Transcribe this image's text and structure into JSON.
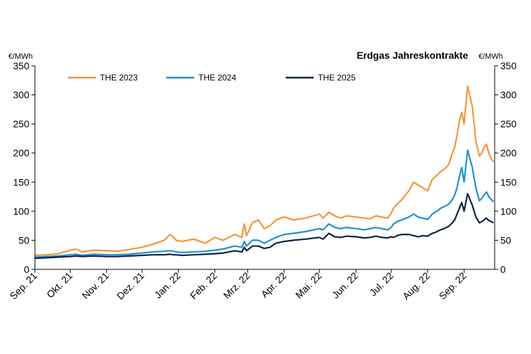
{
  "chart_data": {
    "type": "line",
    "title": "Erdgas Jahreskontrakte",
    "ylabel_left": "€/MWh",
    "ylabel_right": "€/MWh",
    "ylim": [
      0,
      350
    ],
    "yticks": [
      "0",
      "50",
      "100",
      "150",
      "200",
      "250",
      "300",
      "350"
    ],
    "xlim": [
      0,
      391
    ],
    "categories": [
      "Sep. 21",
      "Okt. 21",
      "Nov. 21",
      "Dez. 21",
      "Jan. 22",
      "Feb. 22",
      "Mrz. 22",
      "Apr. 22",
      "Mai. 22",
      "Jun. 22",
      "Jul. 22",
      "Aug. 22",
      "Sep. 22"
    ],
    "category_positions": [
      0,
      30,
      61,
      91,
      122,
      153,
      181,
      212,
      242,
      273,
      303,
      334,
      365
    ],
    "grid": false,
    "legend_position": "top-left",
    "series": [
      {
        "name": "THE 2023",
        "color": "#F39539",
        "x": [
          0,
          10,
          20,
          30,
          35,
          40,
          50,
          61,
          70,
          80,
          91,
          100,
          110,
          115,
          118,
          120,
          125,
          135,
          145,
          153,
          160,
          170,
          176,
          178,
          180,
          185,
          190,
          195,
          200,
          205,
          212,
          220,
          230,
          242,
          245,
          250,
          255,
          260,
          265,
          273,
          280,
          285,
          290,
          295,
          300,
          303,
          305,
          308,
          312,
          318,
          322,
          326,
          330,
          334,
          338,
          340,
          342,
          345,
          348,
          352,
          355,
          357,
          359,
          361,
          363,
          365,
          368,
          372,
          375,
          378,
          380,
          382,
          384,
          386,
          388,
          390
        ],
        "y": [
          24,
          25,
          27,
          33,
          35,
          30,
          33,
          32,
          31,
          34,
          38,
          43,
          50,
          60,
          55,
          50,
          48,
          52,
          45,
          55,
          50,
          60,
          55,
          78,
          58,
          80,
          85,
          70,
          75,
          85,
          90,
          85,
          88,
          95,
          88,
          98,
          92,
          88,
          92,
          90,
          88,
          87,
          92,
          90,
          88,
          97,
          105,
          112,
          120,
          135,
          150,
          145,
          140,
          135,
          155,
          158,
          162,
          168,
          172,
          180,
          200,
          210,
          230,
          255,
          270,
          250,
          315,
          280,
          220,
          195,
          200,
          210,
          215,
          200,
          190,
          185
        ]
      },
      {
        "name": "THE 2024",
        "color": "#1E90CF",
        "x": [
          0,
          10,
          20,
          30,
          35,
          40,
          50,
          61,
          70,
          80,
          91,
          100,
          110,
          115,
          118,
          120,
          125,
          135,
          145,
          153,
          160,
          170,
          176,
          178,
          180,
          185,
          190,
          195,
          200,
          205,
          212,
          220,
          230,
          242,
          245,
          250,
          255,
          260,
          265,
          273,
          280,
          285,
          290,
          295,
          300,
          303,
          305,
          308,
          312,
          318,
          322,
          326,
          330,
          334,
          338,
          340,
          342,
          345,
          348,
          352,
          355,
          357,
          359,
          361,
          363,
          365,
          368,
          372,
          375,
          378,
          380,
          382,
          384,
          386,
          388,
          390
        ],
        "y": [
          21,
          22,
          23,
          25,
          26,
          24,
          26,
          25,
          25,
          26,
          28,
          30,
          31,
          32,
          31,
          30,
          29,
          30,
          31,
          33,
          35,
          40,
          38,
          48,
          40,
          50,
          50,
          45,
          50,
          55,
          60,
          62,
          65,
          70,
          68,
          78,
          72,
          70,
          72,
          70,
          68,
          70,
          72,
          70,
          68,
          72,
          78,
          82,
          85,
          90,
          95,
          90,
          88,
          86,
          95,
          98,
          100,
          105,
          108,
          112,
          120,
          128,
          140,
          160,
          175,
          150,
          205,
          175,
          140,
          118,
          122,
          128,
          133,
          125,
          120,
          116
        ]
      },
      {
        "name": "THE 2025",
        "color": "#0B2346",
        "x": [
          0,
          10,
          20,
          30,
          35,
          40,
          50,
          61,
          70,
          80,
          91,
          100,
          110,
          115,
          118,
          120,
          125,
          135,
          145,
          153,
          160,
          170,
          176,
          178,
          180,
          185,
          190,
          195,
          200,
          205,
          212,
          220,
          230,
          242,
          245,
          250,
          255,
          260,
          265,
          273,
          280,
          285,
          290,
          295,
          300,
          303,
          305,
          308,
          312,
          318,
          322,
          326,
          330,
          334,
          338,
          340,
          342,
          345,
          348,
          352,
          355,
          357,
          359,
          361,
          363,
          365,
          368,
          372,
          375,
          378,
          380,
          382,
          384,
          386,
          388,
          390
        ],
        "y": [
          19,
          20,
          21,
          22,
          23,
          22,
          23,
          22,
          22,
          23,
          24,
          25,
          25,
          26,
          25,
          25,
          24,
          25,
          26,
          27,
          28,
          32,
          30,
          38,
          32,
          40,
          40,
          36,
          38,
          45,
          48,
          50,
          52,
          55,
          52,
          62,
          56,
          55,
          57,
          56,
          54,
          55,
          57,
          55,
          54,
          56,
          55,
          58,
          60,
          60,
          58,
          56,
          58,
          57,
          62,
          63,
          65,
          68,
          70,
          74,
          80,
          85,
          95,
          105,
          115,
          100,
          130,
          110,
          90,
          80,
          82,
          85,
          88,
          84,
          82,
          80
        ]
      }
    ]
  }
}
